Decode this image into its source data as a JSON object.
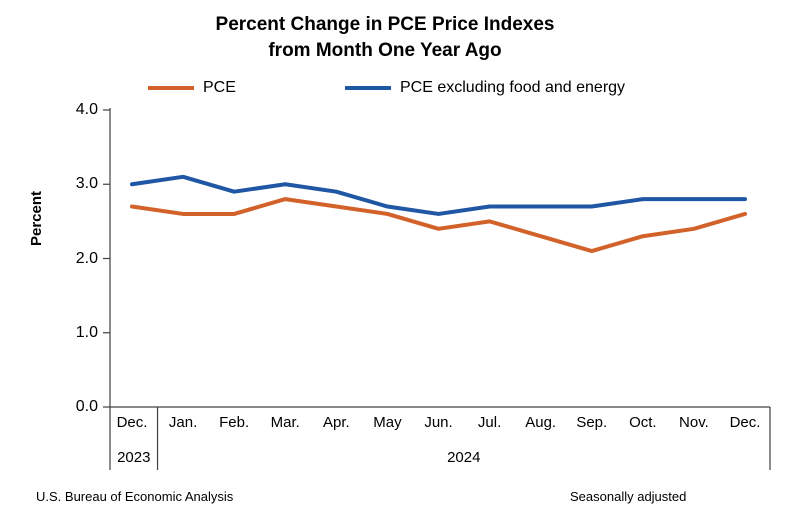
{
  "title": {
    "line1": "Percent Change in PCE Price Indexes",
    "line2": "from Month One Year Ago"
  },
  "y_axis_label": "Percent",
  "footer": {
    "source": "U.S. Bureau of Economic Analysis",
    "note": "Seasonally adjusted"
  },
  "chart_data": {
    "type": "line",
    "title": "Percent Change in PCE Price Indexes from Month One Year Ago",
    "xlabel": "",
    "ylabel": "Percent",
    "ylim": [
      0,
      4
    ],
    "yticks": [
      0,
      1,
      2,
      3,
      4
    ],
    "ytick_labels": [
      "0.0",
      "1.0",
      "2.0",
      "3.0",
      "4.0"
    ],
    "grid": false,
    "legend_position": "top",
    "categories": [
      "Dec.",
      "Jan.",
      "Feb.",
      "Mar.",
      "Apr.",
      "May",
      "Jun.",
      "Jul.",
      "Aug.",
      "Sep.",
      "Oct.",
      "Nov.",
      "Dec."
    ],
    "year_groups": [
      {
        "label": "2023",
        "months": 1
      },
      {
        "label": "2024",
        "months": 12
      }
    ],
    "series": [
      {
        "name": "PCE",
        "color": "#D2622A",
        "values": [
          2.7,
          2.6,
          2.6,
          2.8,
          2.7,
          2.6,
          2.4,
          2.5,
          2.3,
          2.1,
          2.3,
          2.4,
          2.6
        ]
      },
      {
        "name": "PCE excluding food and energy",
        "color": "#1F57A5",
        "values": [
          3.0,
          3.1,
          2.9,
          3.0,
          2.9,
          2.7,
          2.6,
          2.7,
          2.7,
          2.7,
          2.8,
          2.8,
          2.8
        ]
      }
    ],
    "notes": {
      "source": "U.S. Bureau of Economic Analysis",
      "adjustment": "Seasonally adjusted"
    },
    "axis_color": "#404040"
  }
}
